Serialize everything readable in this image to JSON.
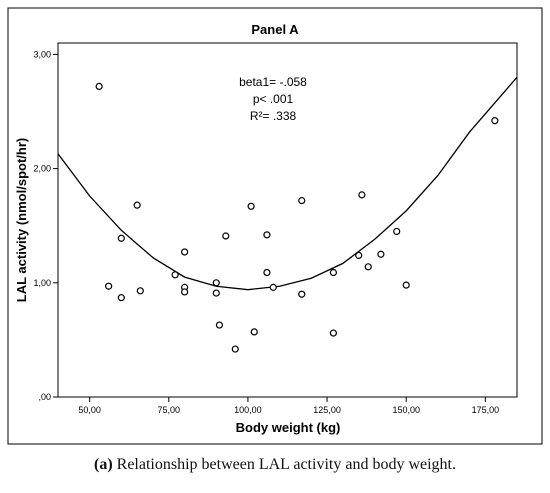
{
  "chart_data": {
    "type": "scatter",
    "title": "Panel A",
    "xlabel": "Body weight (kg)",
    "ylabel": "LAL activity (nmol/spot/hr)",
    "xlim": [
      40,
      185
    ],
    "ylim": [
      0,
      3.1
    ],
    "x_ticks": [
      50,
      75,
      100,
      125,
      150,
      175
    ],
    "x_tick_labels": [
      "50,00",
      "75,00",
      "100,00",
      "125,00",
      "150,00",
      "175,00"
    ],
    "y_ticks": [
      0,
      1,
      2,
      3
    ],
    "y_tick_labels": [
      ",00",
      "1,00",
      "2,00",
      "3,00"
    ],
    "grid": false,
    "annotations": [
      "beta1= -.058",
      "p< .001",
      "R²= .338"
    ],
    "points": [
      {
        "x": 53,
        "y": 2.72
      },
      {
        "x": 56,
        "y": 0.97
      },
      {
        "x": 60,
        "y": 1.39
      },
      {
        "x": 60,
        "y": 0.87
      },
      {
        "x": 65,
        "y": 1.68
      },
      {
        "x": 66,
        "y": 0.93
      },
      {
        "x": 77,
        "y": 1.07
      },
      {
        "x": 80,
        "y": 1.27
      },
      {
        "x": 80,
        "y": 0.96
      },
      {
        "x": 80,
        "y": 0.92
      },
      {
        "x": 90,
        "y": 1.0
      },
      {
        "x": 90,
        "y": 0.91
      },
      {
        "x": 91,
        "y": 0.63
      },
      {
        "x": 93,
        "y": 1.41
      },
      {
        "x": 96,
        "y": 0.42
      },
      {
        "x": 101,
        "y": 1.67
      },
      {
        "x": 102,
        "y": 0.57
      },
      {
        "x": 106,
        "y": 1.42
      },
      {
        "x": 106,
        "y": 1.09
      },
      {
        "x": 108,
        "y": 0.96
      },
      {
        "x": 117,
        "y": 1.72
      },
      {
        "x": 117,
        "y": 0.9
      },
      {
        "x": 127,
        "y": 1.09
      },
      {
        "x": 127,
        "y": 0.56
      },
      {
        "x": 135,
        "y": 1.24
      },
      {
        "x": 136,
        "y": 1.77
      },
      {
        "x": 138,
        "y": 1.14
      },
      {
        "x": 142,
        "y": 1.25
      },
      {
        "x": 147,
        "y": 1.45
      },
      {
        "x": 150,
        "y": 0.98
      },
      {
        "x": 178,
        "y": 2.42
      }
    ],
    "fit_line": {
      "type": "quadratic",
      "points": [
        {
          "x": 40,
          "y": 2.13
        },
        {
          "x": 50,
          "y": 1.76
        },
        {
          "x": 60,
          "y": 1.46
        },
        {
          "x": 70,
          "y": 1.22
        },
        {
          "x": 80,
          "y": 1.05
        },
        {
          "x": 90,
          "y": 0.97
        },
        {
          "x": 100,
          "y": 0.94
        },
        {
          "x": 110,
          "y": 0.97
        },
        {
          "x": 120,
          "y": 1.04
        },
        {
          "x": 130,
          "y": 1.17
        },
        {
          "x": 140,
          "y": 1.38
        },
        {
          "x": 150,
          "y": 1.63
        },
        {
          "x": 160,
          "y": 1.94
        },
        {
          "x": 170,
          "y": 2.32
        },
        {
          "x": 185,
          "y": 2.8
        }
      ]
    }
  },
  "caption": {
    "label": "(a)",
    "text": " Relationship between LAL activity and body weight."
  }
}
